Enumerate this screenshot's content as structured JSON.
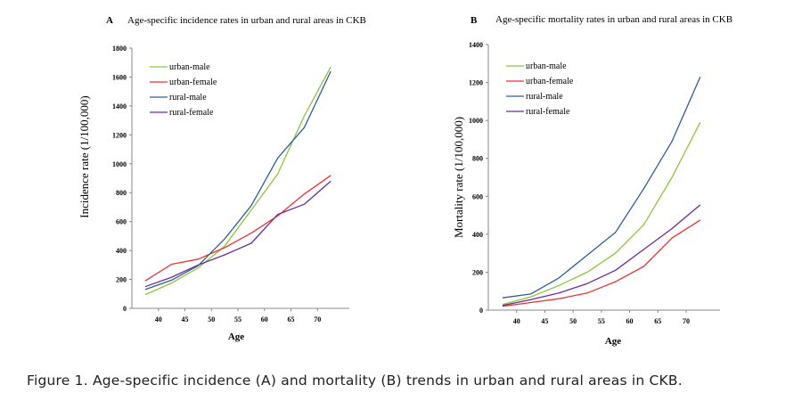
{
  "caption": "Figure 1. Age-specific incidence (A) and mortality (B) trends in urban and rural areas in CKB.",
  "colors": {
    "urban-male": "#8cc63f",
    "urban-female": "#ee3333",
    "rural-male": "#2e5c9c",
    "rural-female": "#6a2c9a"
  },
  "chart_data": [
    {
      "type": "line",
      "letter": "A",
      "title": "Age-specific incidence rates in urban and rural areas in CKB",
      "xlabel": "Age",
      "ylabel": "Incidence rate (1/100,000)",
      "xlim": [
        35,
        76
      ],
      "ylim": [
        0,
        1800
      ],
      "xticks": [
        40,
        45,
        50,
        55,
        60,
        65,
        70
      ],
      "yticks": [
        0,
        200,
        400,
        600,
        800,
        1000,
        1200,
        1400,
        1600,
        1800
      ],
      "legend_position": "top-left",
      "x": [
        37.5,
        42.5,
        47.5,
        52.5,
        57.5,
        62.5,
        67.5,
        72.5
      ],
      "series": [
        {
          "name": "urban-male",
          "values": [
            95,
            175,
            280,
            430,
            680,
            930,
            1330,
            1670
          ]
        },
        {
          "name": "urban-female",
          "values": [
            190,
            305,
            340,
            420,
            520,
            640,
            790,
            920
          ]
        },
        {
          "name": "rural-male",
          "values": [
            130,
            195,
            295,
            480,
            710,
            1040,
            1250,
            1640
          ]
        },
        {
          "name": "rural-female",
          "values": [
            150,
            215,
            300,
            370,
            450,
            650,
            720,
            880
          ]
        }
      ]
    },
    {
      "type": "line",
      "letter": "B",
      "title": "Age-specific mortality rates in urban and rural areas in CKB",
      "xlabel": "Age",
      "ylabel": "Mortality rate (1/100,000)",
      "xlim": [
        35,
        76
      ],
      "ylim": [
        0,
        1400
      ],
      "xticks": [
        40,
        45,
        50,
        55,
        60,
        65,
        70
      ],
      "yticks": [
        0,
        200,
        400,
        600,
        800,
        1000,
        1200,
        1400
      ],
      "legend_position": "top-left",
      "x": [
        37.5,
        42.5,
        47.5,
        52.5,
        57.5,
        62.5,
        67.5,
        72.5
      ],
      "series": [
        {
          "name": "urban-male",
          "values": [
            30,
            70,
            130,
            200,
            300,
            450,
            700,
            990
          ]
        },
        {
          "name": "urban-female",
          "values": [
            20,
            40,
            60,
            90,
            150,
            230,
            380,
            475
          ]
        },
        {
          "name": "rural-male",
          "values": [
            65,
            85,
            170,
            290,
            410,
            640,
            890,
            1230
          ]
        },
        {
          "name": "rural-female",
          "values": [
            25,
            55,
            90,
            140,
            210,
            320,
            430,
            555
          ]
        }
      ]
    }
  ]
}
